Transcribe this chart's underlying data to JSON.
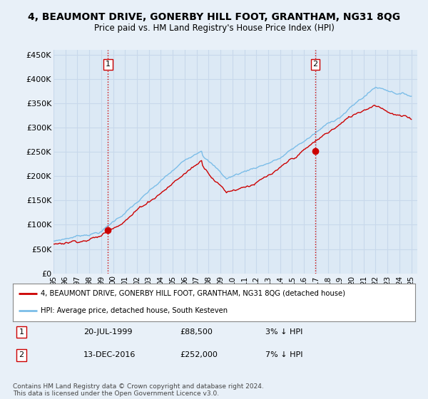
{
  "title": "4, BEAUMONT DRIVE, GONERBY HILL FOOT, GRANTHAM, NG31 8QG",
  "subtitle": "Price paid vs. HM Land Registry's House Price Index (HPI)",
  "ylim": [
    0,
    460000
  ],
  "yticks": [
    0,
    50000,
    100000,
    150000,
    200000,
    250000,
    300000,
    350000,
    400000,
    450000
  ],
  "ytick_labels": [
    "£0",
    "£50K",
    "£100K",
    "£150K",
    "£200K",
    "£250K",
    "£300K",
    "£350K",
    "£400K",
    "£450K"
  ],
  "bg_color": "#e8f0f8",
  "plot_bg_color": "#dce9f5",
  "grid_color": "#c8d8eb",
  "hpi_color": "#7bbde8",
  "price_color": "#cc0000",
  "dashed_color": "#cc0000",
  "sale1_date": 1999.56,
  "sale1_price": 88500,
  "sale2_date": 2016.95,
  "sale2_price": 252000,
  "legend_label1": "4, BEAUMONT DRIVE, GONERBY HILL FOOT, GRANTHAM, NG31 8QG (detached house)",
  "legend_label2": "HPI: Average price, detached house, South Kesteven",
  "table_row1": [
    "1",
    "20-JUL-1999",
    "£88,500",
    "3% ↓ HPI"
  ],
  "table_row2": [
    "2",
    "13-DEC-2016",
    "£252,000",
    "7% ↓ HPI"
  ],
  "footer": "Contains HM Land Registry data © Crown copyright and database right 2024.\nThis data is licensed under the Open Government Licence v3.0.",
  "title_fontsize": 10,
  "subtitle_fontsize": 8.5,
  "xtick_labels": [
    "95",
    "96",
    "97",
    "98",
    "99",
    "00",
    "01",
    "02",
    "03",
    "04",
    "05",
    "06",
    "07",
    "08",
    "09",
    "10",
    "11",
    "12",
    "13",
    "14",
    "15",
    "16",
    "17",
    "18",
    "19",
    "20",
    "21",
    "22",
    "23",
    "24",
    "25"
  ]
}
